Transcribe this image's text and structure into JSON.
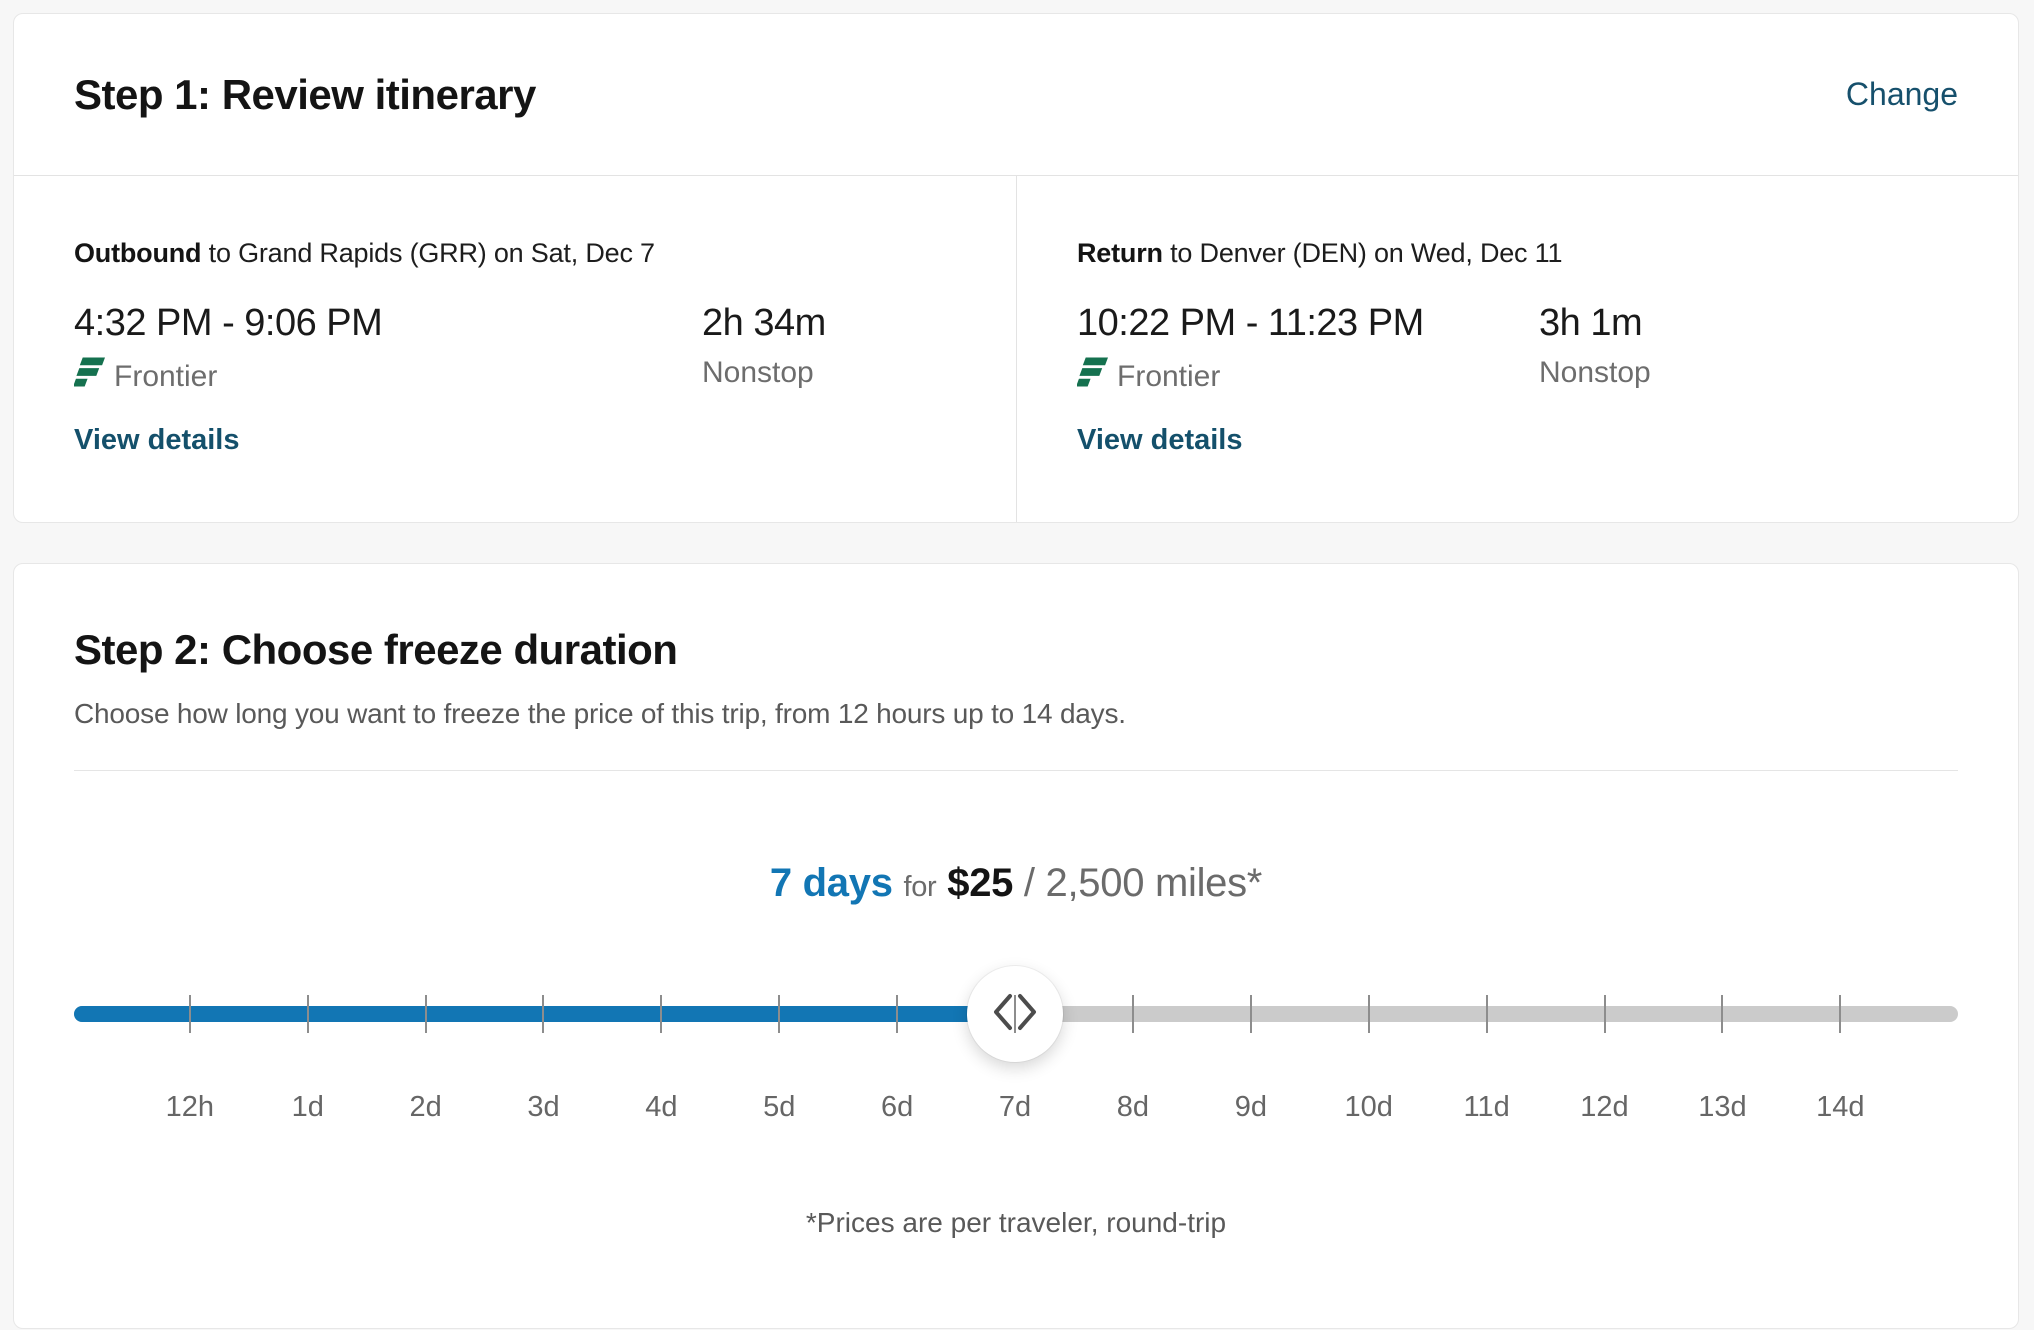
{
  "step1": {
    "title": "Step 1: Review itinerary",
    "change_label": "Change",
    "flights": [
      {
        "label": "Outbound",
        "route": "to Grand Rapids (GRR) on Sat, Dec 7",
        "times": "4:32 PM - 9:06 PM",
        "airline": "Frontier",
        "details_label": "View details",
        "duration": "2h 34m",
        "stops": "Nonstop"
      },
      {
        "label": "Return",
        "route": "to Denver (DEN) on Wed, Dec 11",
        "times": "10:22 PM - 11:23 PM",
        "airline": "Frontier",
        "details_label": "View details",
        "duration": "3h 1m",
        "stops": "Nonstop"
      }
    ]
  },
  "step2": {
    "title": "Step 2: Choose freeze duration",
    "subtitle": "Choose how long you want to freeze the price of this trip, from 12 hours up to 14 days.",
    "selection": {
      "duration": "7 days",
      "for_word": "for",
      "price": "$25",
      "miles": "/ 2,500 miles*"
    },
    "slider": {
      "labels": [
        "12h",
        "1d",
        "2d",
        "3d",
        "4d",
        "5d",
        "6d",
        "7d",
        "8d",
        "9d",
        "10d",
        "11d",
        "12d",
        "13d",
        "14d"
      ],
      "selected_index": 7,
      "fill_color": "#1276b4",
      "track_color": "#cbcbcb"
    },
    "footnote": "*Prices are per traveler, round-trip"
  },
  "colors": {
    "link": "#16506c",
    "accent_blue": "#1276b4",
    "frontier_green": "#15714f",
    "page_background": "#f7f7f7"
  }
}
